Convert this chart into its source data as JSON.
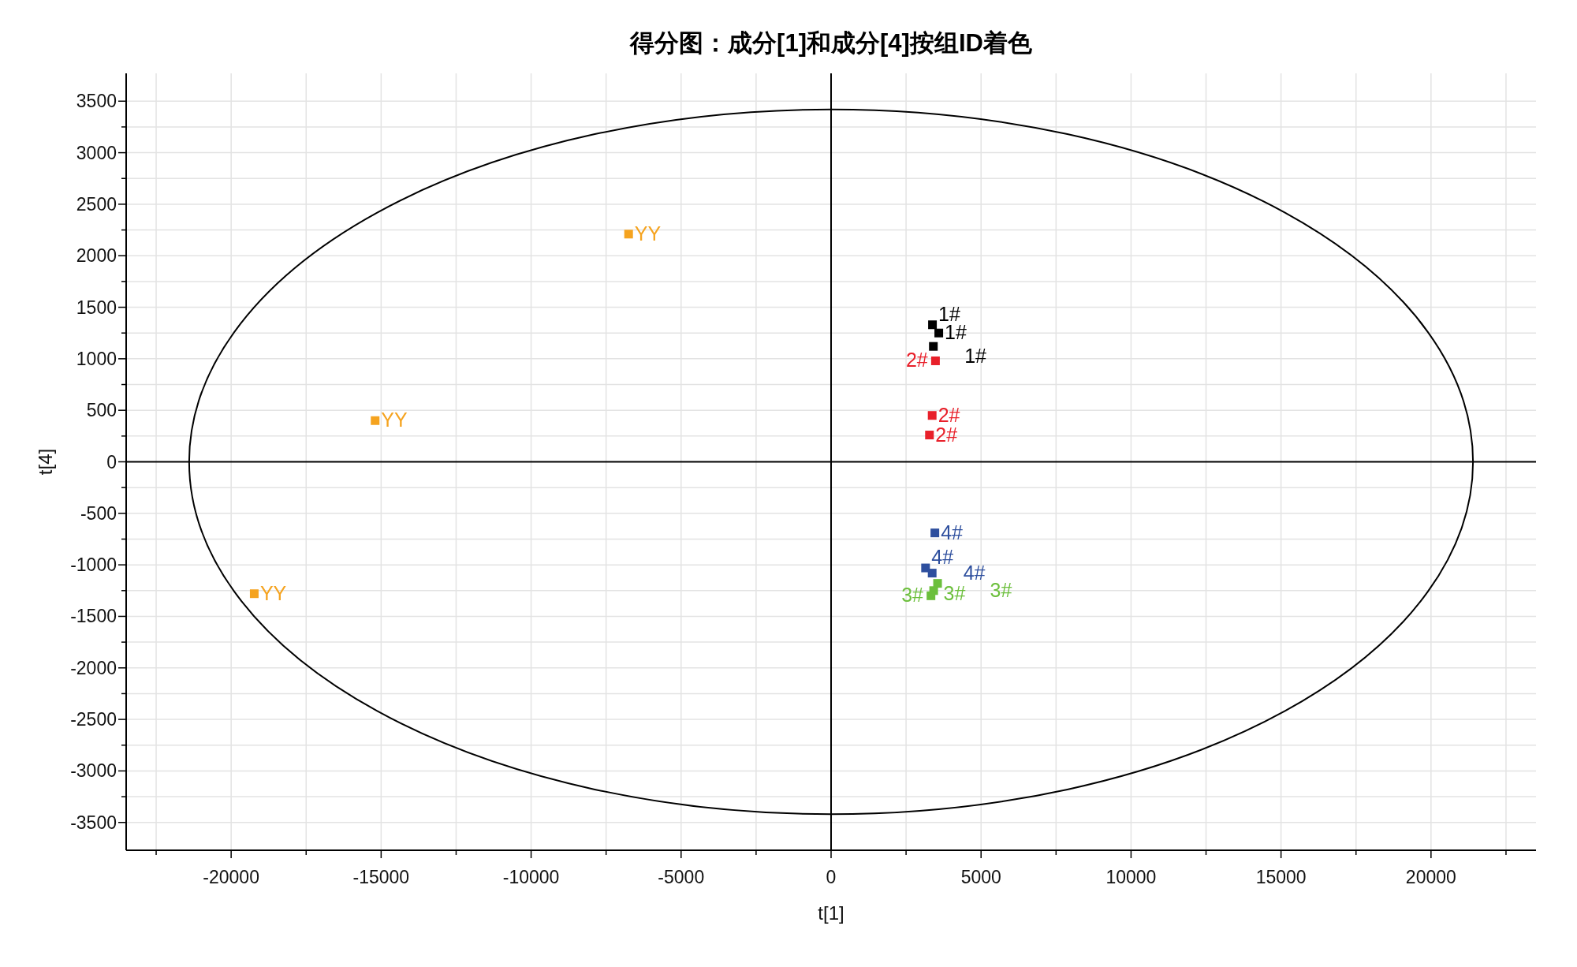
{
  "chart_data": {
    "type": "scatter",
    "title": "得分图：成分[1]和成分[4]按组ID着色",
    "xlabel": "t[1]",
    "ylabel": "t[4]",
    "xlim": [
      -23500,
      23500
    ],
    "ylim": [
      -3770,
      3770
    ],
    "xticks": [
      {
        "value": -22500,
        "label": null
      },
      -20000,
      {
        "value": -17500,
        "label": null
      },
      -15000,
      {
        "value": -12500,
        "label": null
      },
      -10000,
      {
        "value": -7500,
        "label": null
      },
      -5000,
      {
        "value": -2500,
        "label": null
      },
      0,
      {
        "value": 2500,
        "label": null
      },
      5000,
      {
        "value": 7500,
        "label": null
      },
      10000,
      {
        "value": 12500,
        "label": null
      },
      15000,
      {
        "value": 17500,
        "label": null
      },
      20000,
      {
        "value": 22500,
        "label": null
      }
    ],
    "yticks": [
      -3500,
      {
        "value": -3250,
        "label": null
      },
      -3000,
      {
        "value": -2750,
        "label": null
      },
      -2500,
      {
        "value": -2250,
        "label": null
      },
      -2000,
      {
        "value": -1750,
        "label": null
      },
      -1500,
      {
        "value": -1250,
        "label": null
      },
      -1000,
      {
        "value": -750,
        "label": null
      },
      -500,
      {
        "value": -250,
        "label": null
      },
      0,
      {
        "value": 250,
        "label": null
      },
      500,
      {
        "value": 750,
        "label": null
      },
      1000,
      {
        "value": 1250,
        "label": null
      },
      1500,
      {
        "value": 1750,
        "label": null
      },
      2000,
      {
        "value": 2250,
        "label": null
      },
      2500,
      {
        "value": 2750,
        "label": null
      },
      3000,
      {
        "value": 3250,
        "label": null
      },
      3500
    ],
    "grid": true,
    "marker": "square",
    "series": [
      {
        "name": "YY",
        "color": "#f5a31f",
        "x": [
          -6750,
          -15200,
          -19230
        ],
        "values": [
          2210,
          400,
          -1280
        ]
      },
      {
        "name": "1#",
        "color": "#000000",
        "x": [
          3380,
          3590,
          3410
        ],
        "values": [
          1330,
          1250,
          1120
        ]
      },
      {
        "name": "2#",
        "color": "#e8202a",
        "x": [
          3480,
          3370,
          3280
        ],
        "values": [
          980,
          450,
          260
        ]
      },
      {
        "name": "4#",
        "color": "#2e4f9e",
        "x": [
          3460,
          3150,
          3370
        ],
        "values": [
          -690,
          -1030,
          -1080
        ]
      },
      {
        "name": "3#",
        "color": "#6cbf3c",
        "x": [
          3550,
          3420,
          3330
        ],
        "values": [
          -1180,
          -1250,
          -1300
        ]
      }
    ]
  }
}
